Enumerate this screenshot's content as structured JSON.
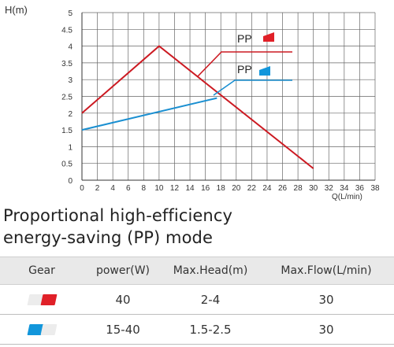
{
  "chart_data": {
    "type": "line",
    "ylabel": "H(m)",
    "xlabel": "Q(L/min)",
    "xlim": [
      0,
      38
    ],
    "ylim": [
      0,
      5
    ],
    "x_ticks": [
      "0",
      "2",
      "4",
      "6",
      "8",
      "10",
      "12",
      "14",
      "16",
      "18",
      "20",
      "22",
      "24",
      "26",
      "28",
      "30",
      "32",
      "34",
      "36",
      "38"
    ],
    "y_ticks": [
      "0",
      "0.5",
      "1",
      "1.5",
      "2",
      "2.5",
      "3",
      "3.5",
      "4",
      "4.5",
      "5"
    ],
    "grid": true,
    "series": [
      {
        "name": "PP",
        "color": "#cc1a22",
        "x": [
          0,
          10,
          30
        ],
        "y": [
          2.0,
          4.0,
          0.35
        ]
      },
      {
        "name": "PP",
        "color": "#1a8fd1",
        "x": [
          0,
          17.5
        ],
        "y": [
          1.5,
          2.45
        ]
      }
    ]
  },
  "heading": {
    "line1": "Proportional high-efficiency",
    "line2": "energy-saving (PP) mode"
  },
  "table": {
    "headers": [
      "Gear",
      "power(W)",
      "Max.Head(m)",
      "Max.Flow(L/min)"
    ],
    "rows": [
      {
        "gear_icon": "red-gear-indicator",
        "power": "40",
        "max_head": "2-4",
        "max_flow": "30"
      },
      {
        "gear_icon": "blue-gear-indicator",
        "power": "15-40",
        "max_head": "1.5-2.5",
        "max_flow": "30"
      }
    ]
  },
  "colors": {
    "red": "#e02028",
    "blue": "#1296db",
    "light_gray": "#e8e8e8"
  }
}
